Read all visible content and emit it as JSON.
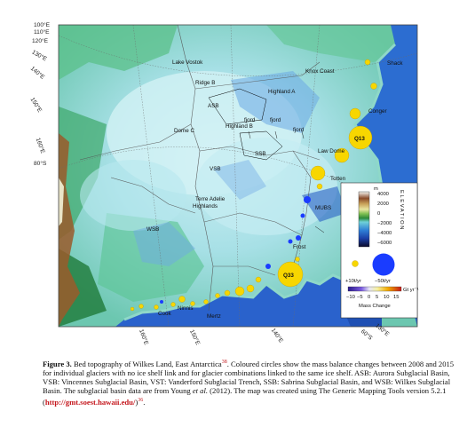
{
  "figure": {
    "longitude_ticks_top_left": [
      "100°E",
      "110°E",
      "120°E",
      "130°E",
      "140°E",
      "150°E",
      "160°E"
    ],
    "latitude_tick_left": "80°S",
    "bottom_ticks": [
      "160°E",
      "150°E",
      "140°E",
      "60°S",
      "130°E"
    ],
    "places": {
      "lake_vostok": "Lake Vostok",
      "ridge_b": "Ridge B",
      "asb": "ASB",
      "highland_a": "Highland A",
      "knox_coast": "Knox Coast",
      "shack": "Shack",
      "conger": "Conger",
      "dome_c": "Dome C",
      "fjord1": "fjord",
      "fjord2": "fjord",
      "fjord3": "fjord",
      "highland_b": "Highland B",
      "ssb": "SSB",
      "law_dome": "Law Dome",
      "totten": "Totten",
      "vsb": "VSB",
      "terre_adelie_1": "Terre Adelie",
      "terre_adelie_2": "Highlands",
      "mubs": "MUBS",
      "wsb": "WSB",
      "frost": "Frost",
      "ninnis": "Ninnis",
      "cook": "Cook",
      "mertz": "Mertz",
      "q13": "Q13",
      "q33": "Q33"
    },
    "legend": {
      "elevation_title": "ELEVATION",
      "unit": "m",
      "ticks": [
        "4000",
        "2000",
        "0",
        "−2000",
        "−4000",
        "−6000"
      ],
      "gain_label": "+10t/yr",
      "loss_label": "−50t/yr",
      "scale_ticks": [
        "−10",
        "−5",
        "0",
        "5",
        "10",
        "15"
      ],
      "scale_unit": "Gt yr⁻¹",
      "mass_change_title": "Mass Change"
    }
  },
  "caption": {
    "label": "Figure 3.",
    "title": "Bed topography of Wilkes Land, East Antarctica",
    "ref1": "38",
    "body1": ". Coloured circles show the mass balance changes between 2008 and 2015 for individual glaciers with no ice shelf link and for glacier combinations linked to the same ice shelf. ASB: Aurora Subglacial Basin, VSB: Vincennes Subglacial Basin, VST: Vanderford Subglacial Trench, SSB: Sabrina Subglacial Basin, and WSB: Wilkes Subglacial Basin. The subglacial basin data are from Young ",
    "etal": "et al.",
    "body2": " (2012). The map was created using The Generic Mapping Tools version 5.2.1 (",
    "link": "http://gmt.soest.hawaii.edu/",
    "body3": ")",
    "ref2": "36",
    "end": "."
  },
  "colors": {
    "ocean_deep": "#1f4fbf",
    "land_low": "#7fd0b5",
    "land_high": "#c7ecf2",
    "gain": "#f7d600",
    "loss": "#1a3cff",
    "link": "#c4161c"
  }
}
